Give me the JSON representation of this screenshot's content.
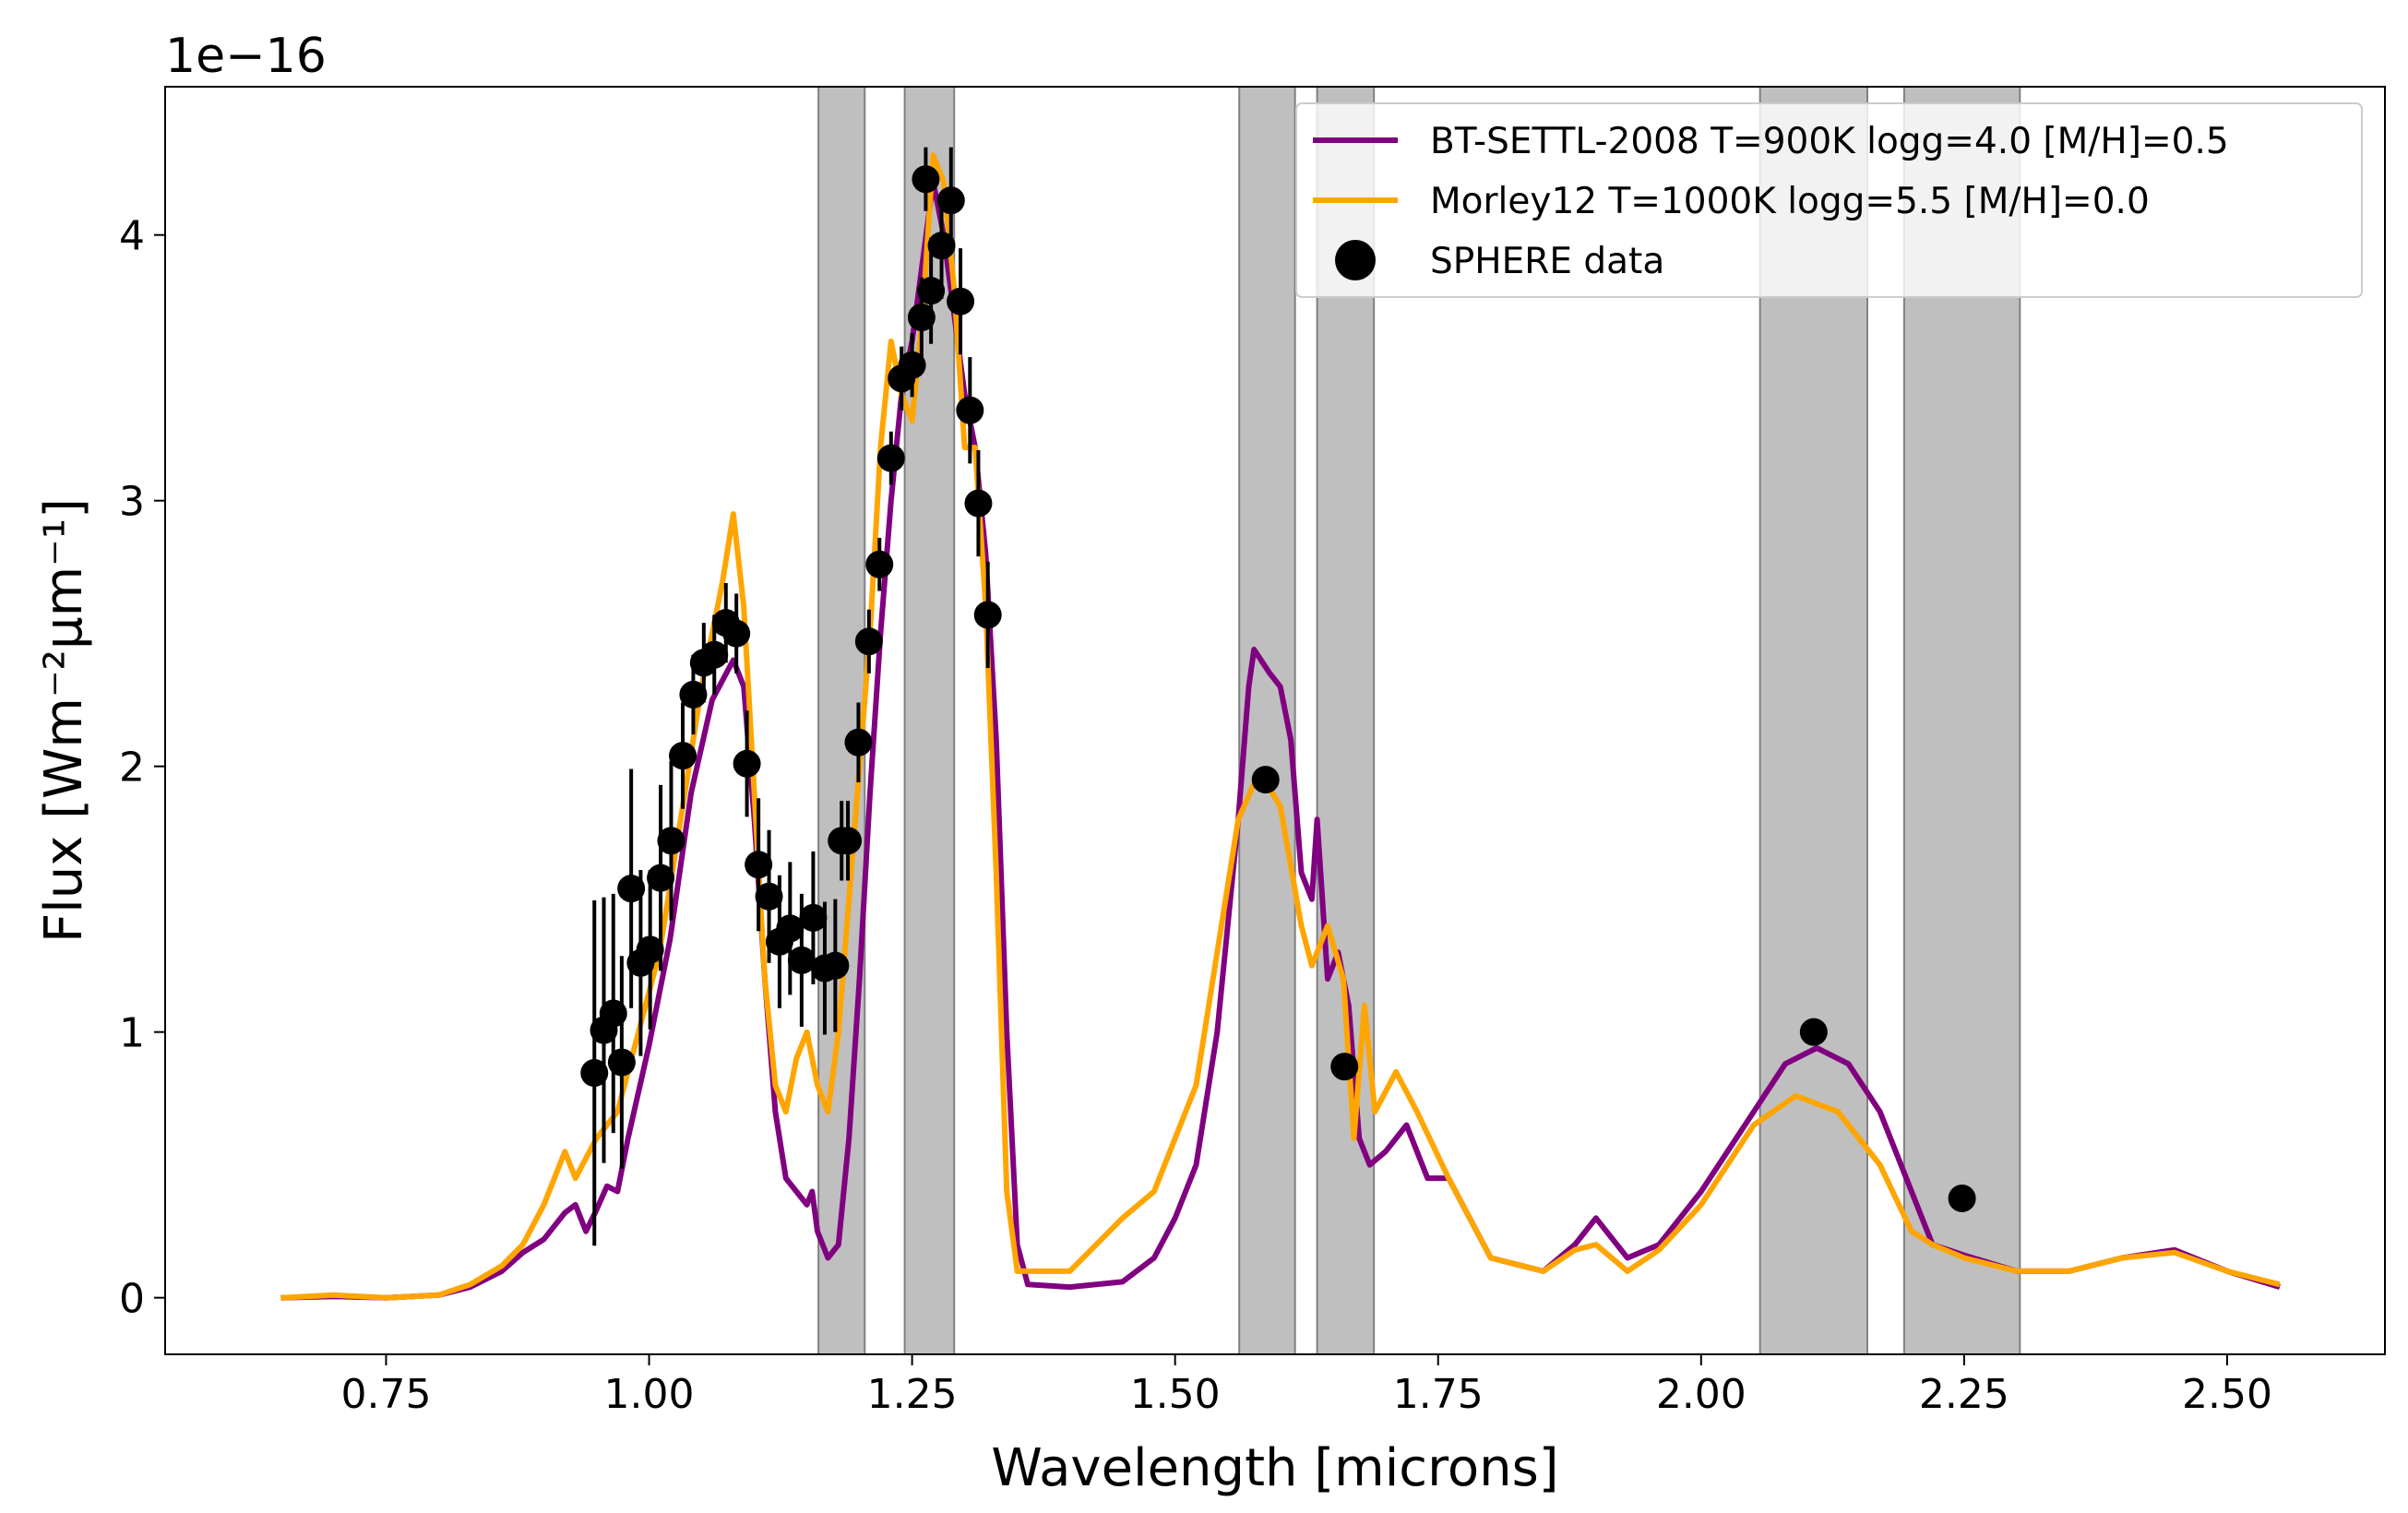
{
  "chart_data": {
    "type": "line",
    "offset_label": "1e−16",
    "xlabel": "Wavelength [microns]",
    "ylabel": "Flux [Wm⁻²μm⁻¹]",
    "xlim": [
      0.54,
      2.65
    ],
    "ylim": [
      -0.213,
      4.558
    ],
    "xticks": [
      0.75,
      {
        "value": 1.0,
        "label": "1.00"
      },
      1.25,
      {
        "value": 1.5,
        "label": "1.50"
      },
      1.75,
      {
        "value": 2.0,
        "label": "2.00"
      },
      2.25,
      {
        "value": 2.5,
        "label": "2.50"
      }
    ],
    "yticks": [
      0,
      1,
      2,
      3,
      4
    ],
    "legend": "upper right",
    "band_color": "#808080",
    "shaded_bands": [
      [
        1.161,
        1.205
      ],
      [
        1.243,
        1.29
      ],
      [
        1.561,
        1.614
      ],
      [
        1.635,
        1.689
      ],
      [
        2.056,
        2.158
      ],
      [
        2.193,
        2.303
      ]
    ],
    "series": [
      {
        "name": "BT-SETTL-2008 T=900K logg=4.0 [M/H]=0.5",
        "color": "#800080",
        "x": [
          0.65,
          0.7,
          0.75,
          0.8,
          0.83,
          0.86,
          0.88,
          0.9,
          0.92,
          0.93,
          0.94,
          0.95,
          0.96,
          0.97,
          0.98,
          1.0,
          1.02,
          1.04,
          1.06,
          1.08,
          1.09,
          1.1,
          1.11,
          1.12,
          1.13,
          1.14,
          1.15,
          1.155,
          1.16,
          1.17,
          1.18,
          1.19,
          1.2,
          1.21,
          1.22,
          1.23,
          1.24,
          1.25,
          1.26,
          1.27,
          1.28,
          1.29,
          1.3,
          1.31,
          1.32,
          1.33,
          1.34,
          1.35,
          1.36,
          1.4,
          1.45,
          1.48,
          1.5,
          1.52,
          1.54,
          1.56,
          1.57,
          1.575,
          1.59,
          1.6,
          1.61,
          1.62,
          1.63,
          1.635,
          1.645,
          1.655,
          1.665,
          1.675,
          1.685,
          1.7,
          1.72,
          1.74,
          1.76,
          1.8,
          1.85,
          1.88,
          1.9,
          1.93,
          1.96,
          2.0,
          2.05,
          2.08,
          2.11,
          2.14,
          2.17,
          2.2,
          2.22,
          2.25,
          2.3,
          2.35,
          2.4,
          2.45,
          2.5,
          2.55
        ],
        "values": [
          0,
          0.005,
          0,
          0.01,
          0.04,
          0.1,
          0.17,
          0.22,
          0.32,
          0.35,
          0.25,
          0.33,
          0.42,
          0.4,
          0.6,
          0.95,
          1.35,
          1.9,
          2.25,
          2.4,
          2.3,
          1.8,
          1.2,
          0.7,
          0.45,
          0.4,
          0.35,
          0.4,
          0.25,
          0.15,
          0.2,
          0.6,
          1.2,
          1.9,
          2.5,
          3.0,
          3.4,
          3.6,
          3.9,
          4.2,
          4.0,
          3.7,
          3.4,
          3.2,
          2.8,
          2.1,
          1.0,
          0.2,
          0.05,
          0.04,
          0.06,
          0.15,
          0.3,
          0.5,
          1.0,
          1.8,
          2.3,
          2.44,
          2.35,
          2.3,
          2.1,
          1.6,
          1.5,
          1.8,
          1.2,
          1.3,
          1.1,
          0.6,
          0.5,
          0.55,
          0.65,
          0.45,
          0.45,
          0.15,
          0.1,
          0.2,
          0.3,
          0.15,
          0.2,
          0.4,
          0.7,
          0.88,
          0.94,
          0.88,
          0.7,
          0.4,
          0.2,
          0.16,
          0.1,
          0.1,
          0.15,
          0.18,
          0.1,
          0.04
        ]
      },
      {
        "name": "Morley12 T=1000K logg=5.5 [M/H]=0.0",
        "color": "#ffa500",
        "x": [
          0.65,
          0.7,
          0.75,
          0.8,
          0.83,
          0.86,
          0.88,
          0.9,
          0.92,
          0.93,
          0.95,
          0.97,
          0.99,
          1.01,
          1.03,
          1.05,
          1.07,
          1.08,
          1.09,
          1.1,
          1.11,
          1.12,
          1.13,
          1.14,
          1.15,
          1.16,
          1.17,
          1.18,
          1.19,
          1.2,
          1.21,
          1.22,
          1.23,
          1.24,
          1.25,
          1.26,
          1.27,
          1.28,
          1.29,
          1.3,
          1.31,
          1.32,
          1.33,
          1.34,
          1.35,
          1.37,
          1.4,
          1.45,
          1.48,
          1.5,
          1.52,
          1.54,
          1.56,
          1.58,
          1.6,
          1.62,
          1.63,
          1.645,
          1.66,
          1.67,
          1.68,
          1.69,
          1.71,
          1.73,
          1.76,
          1.8,
          1.85,
          1.88,
          1.9,
          1.93,
          1.96,
          2.0,
          2.05,
          2.09,
          2.13,
          2.17,
          2.2,
          2.22,
          2.25,
          2.3,
          2.35,
          2.4,
          2.45,
          2.5,
          2.55
        ],
        "values": [
          0,
          0.01,
          0,
          0.01,
          0.05,
          0.12,
          0.2,
          0.35,
          0.55,
          0.45,
          0.6,
          0.7,
          1.0,
          1.3,
          1.8,
          2.3,
          2.7,
          2.95,
          2.6,
          1.9,
          1.2,
          0.8,
          0.7,
          0.9,
          1.0,
          0.8,
          0.7,
          1.0,
          1.5,
          2.0,
          2.5,
          3.2,
          3.6,
          3.4,
          3.3,
          3.7,
          4.3,
          4.2,
          3.8,
          3.2,
          3.2,
          2.6,
          1.6,
          0.4,
          0.1,
          0.1,
          0.1,
          0.3,
          0.4,
          0.6,
          0.8,
          1.3,
          1.8,
          1.98,
          1.85,
          1.4,
          1.25,
          1.4,
          1.2,
          0.6,
          1.1,
          0.7,
          0.85,
          0.7,
          0.45,
          0.15,
          0.1,
          0.18,
          0.2,
          0.1,
          0.18,
          0.35,
          0.65,
          0.76,
          0.7,
          0.5,
          0.25,
          0.2,
          0.15,
          0.1,
          0.1,
          0.15,
          0.17,
          0.1,
          0.05
        ]
      }
    ],
    "scatter": {
      "name": "SPHERE data",
      "color": "#000000",
      "x": [
        0.948,
        0.957,
        0.966,
        0.974,
        0.983,
        0.992,
        1.001,
        1.011,
        1.021,
        1.032,
        1.042,
        1.052,
        1.062,
        1.073,
        1.083,
        1.093,
        1.104,
        1.114,
        1.124,
        1.134,
        1.145,
        1.156,
        1.167,
        1.177,
        1.183,
        1.189,
        1.199,
        1.209,
        1.219,
        1.23,
        1.24,
        1.25,
        1.259,
        1.263,
        1.268,
        1.278,
        1.287,
        1.296,
        1.305,
        1.313,
        1.322,
        1.586,
        1.661,
        2.107,
        2.248
      ],
      "values": [
        0.846,
        1.007,
        1.07,
        0.886,
        1.54,
        1.26,
        1.31,
        1.58,
        1.72,
        2.04,
        2.27,
        2.39,
        2.42,
        2.54,
        2.5,
        2.01,
        1.63,
        1.51,
        1.34,
        1.39,
        1.27,
        1.43,
        1.24,
        1.25,
        1.72,
        1.72,
        2.09,
        2.47,
        2.76,
        3.16,
        3.46,
        3.51,
        3.69,
        4.21,
        3.79,
        3.96,
        4.13,
        3.75,
        3.34,
        2.99,
        2.57,
        1.95,
        0.87,
        1.0,
        0.374
      ],
      "errors": [
        0.65,
        0.5,
        0.45,
        0.4,
        0.45,
        0.35,
        0.3,
        0.35,
        0.3,
        0.2,
        0.15,
        0.15,
        0.15,
        0.15,
        0.15,
        0.2,
        0.25,
        0.25,
        0.25,
        0.25,
        0.25,
        0.25,
        0.25,
        0.25,
        0.15,
        0.15,
        0.15,
        0.12,
        0.1,
        0.1,
        0.12,
        0.12,
        0.15,
        0.12,
        0.2,
        0.2,
        0.2,
        0.2,
        0.2,
        0.2,
        0.2,
        0.02,
        0.02,
        0.02,
        0.02
      ]
    }
  }
}
